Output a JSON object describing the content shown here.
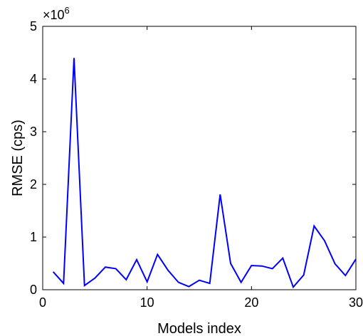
{
  "chart_data": {
    "type": "line",
    "title": "",
    "xlabel": "Models index",
    "ylabel": "RMSE (cps)",
    "xlim": [
      0,
      30
    ],
    "ylim": [
      0,
      5000000
    ],
    "x_ticks": [
      0,
      10,
      20,
      30
    ],
    "x_tick_labels": [
      "0",
      "10",
      "20",
      "30"
    ],
    "y_ticks": [
      0,
      1000000,
      2000000,
      3000000,
      4000000,
      5000000
    ],
    "y_tick_labels": [
      "0",
      "1",
      "2",
      "3",
      "4",
      "5"
    ],
    "y_multiplier_base": "×10",
    "y_multiplier_exponent": "6",
    "grid": false,
    "box": true,
    "series": [
      {
        "color": "#0000ff",
        "x": [
          1,
          2,
          3,
          4,
          5,
          6,
          7,
          8,
          9,
          10,
          11,
          12,
          13,
          14,
          15,
          16,
          17,
          18,
          19,
          20,
          21,
          22,
          23,
          24,
          25,
          26,
          27,
          28,
          29,
          30
        ],
        "values": [
          340000,
          120000,
          4400000,
          80000,
          220000,
          430000,
          400000,
          190000,
          570000,
          150000,
          670000,
          370000,
          140000,
          60000,
          180000,
          120000,
          1810000,
          500000,
          140000,
          460000,
          450000,
          400000,
          600000,
          50000,
          280000,
          1210000,
          930000,
          490000,
          270000,
          580000
        ]
      }
    ]
  }
}
